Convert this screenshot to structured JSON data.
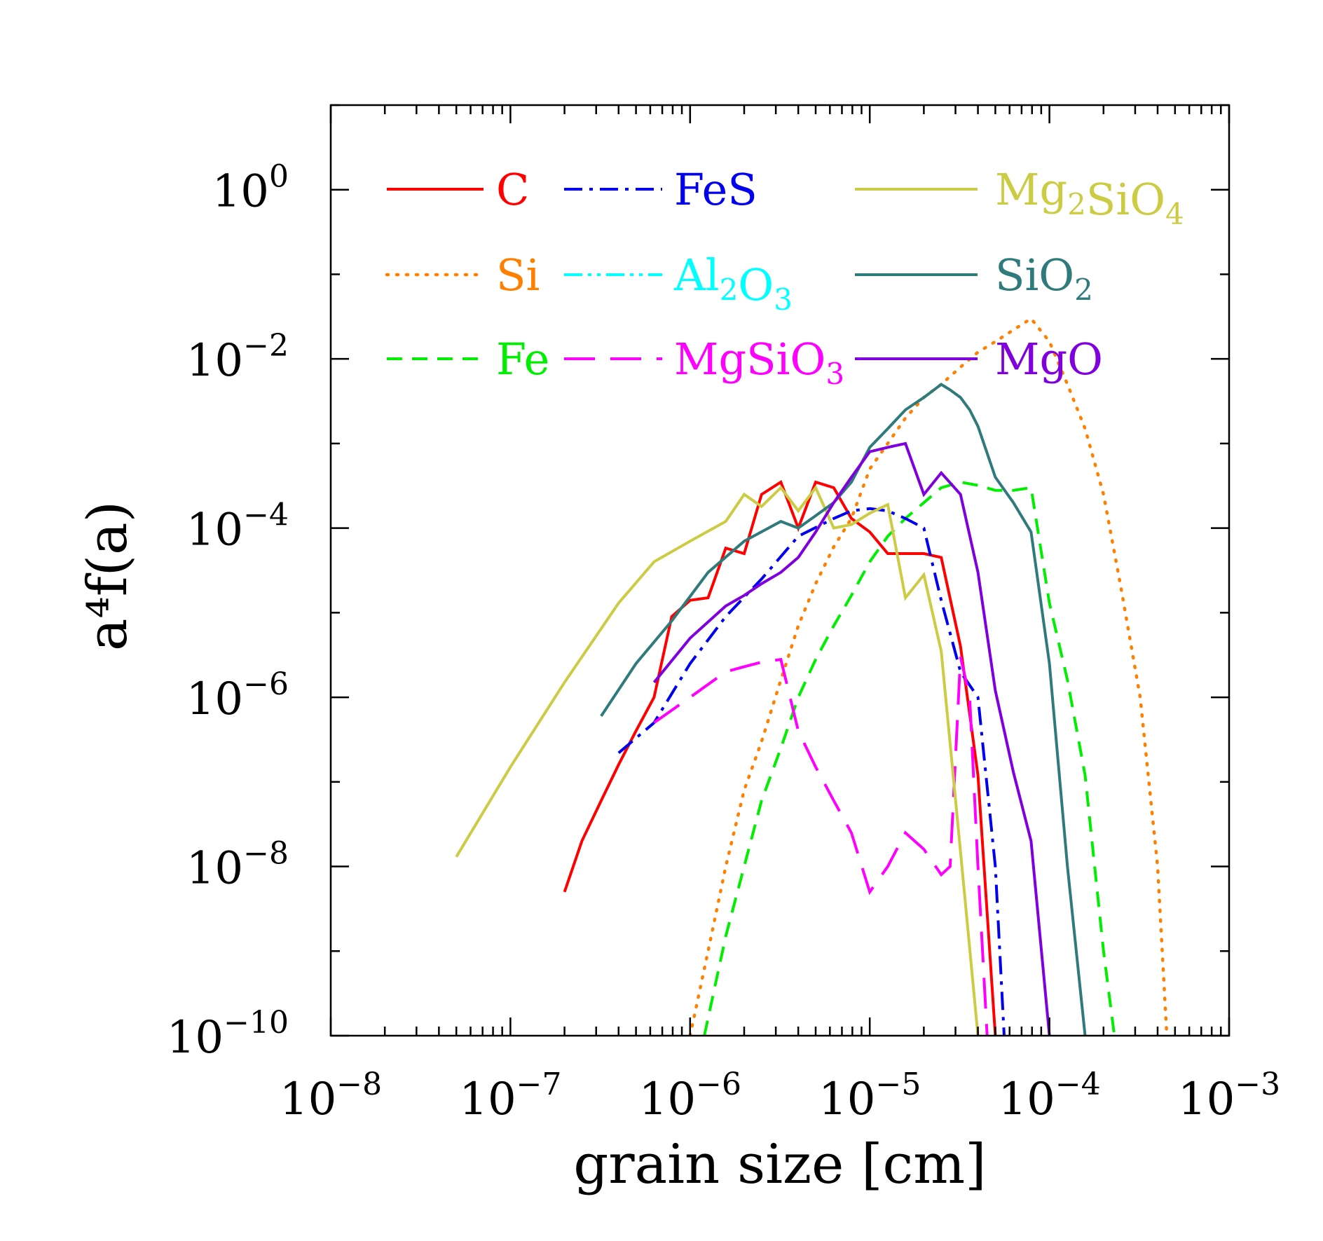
{
  "chart_data": {
    "type": "line",
    "xlabel": "grain size [cm]",
    "ylabel": "a⁴f(a)",
    "xscale": "log",
    "yscale": "log",
    "xlim": [
      1e-08,
      0.001
    ],
    "ylim": [
      1e-10,
      10
    ],
    "x_ticks": [
      {
        "base": "10",
        "exp": "−8"
      },
      {
        "base": "10",
        "exp": "−7"
      },
      {
        "base": "10",
        "exp": "−6"
      },
      {
        "base": "10",
        "exp": "−5"
      },
      {
        "base": "10",
        "exp": "−4"
      },
      {
        "base": "10",
        "exp": "−3"
      }
    ],
    "y_ticks": [
      {
        "base": "10",
        "exp": "0"
      },
      {
        "base": "10",
        "exp": "−2"
      },
      {
        "base": "10",
        "exp": "−4"
      },
      {
        "base": "10",
        "exp": "−6"
      },
      {
        "base": "10",
        "exp": "−8"
      },
      {
        "base": "10",
        "exp": "−10"
      }
    ],
    "grid": false,
    "legend_placement": "top, inside plot, three columns",
    "series": [
      {
        "name": "C",
        "color": "#ff0000",
        "dash": "solid",
        "x": [
          2e-07,
          2.5e-07,
          3.2e-07,
          4e-07,
          5e-07,
          6.3e-07,
          7.9e-07,
          1e-06,
          1.26e-06,
          1.58e-06,
          2e-06,
          2.5e-06,
          3.2e-06,
          4e-06,
          5e-06,
          6.3e-06,
          7.9e-06,
          1e-05,
          1.26e-05,
          1.58e-05,
          2e-05,
          2.5e-05,
          3.2e-05,
          4e-05,
          5e-05
        ],
        "y": [
          5e-09,
          2e-08,
          6e-08,
          1.6e-07,
          4e-07,
          1e-06,
          9e-06,
          1.4e-05,
          1.5e-05,
          5.8e-05,
          5e-05,
          0.00025,
          0.00035,
          0.0001,
          0.00035,
          0.0003,
          0.00013,
          9e-05,
          5e-05,
          5e-05,
          5e-05,
          4.5e-05,
          4e-06,
          1.2e-07,
          1e-10
        ]
      },
      {
        "name": "Si",
        "color": "#ff8000",
        "dash": "dotted",
        "x": [
          1e-06,
          1.26e-06,
          1.58e-06,
          2e-06,
          2.5e-06,
          3.2e-06,
          4e-06,
          5e-06,
          6.3e-06,
          7.9e-06,
          1e-05,
          1.26e-05,
          1.58e-05,
          2e-05,
          2.5e-05,
          3.2e-05,
          4e-05,
          5e-05,
          6.3e-05,
          7.9e-05,
          0.0001,
          0.000126,
          0.000158,
          0.0002,
          0.00025,
          0.00032,
          0.0004,
          0.00045
        ],
        "y": [
          1e-10,
          1e-09,
          1e-08,
          8e-08,
          3e-07,
          1.6e-06,
          7e-06,
          2.2e-05,
          6e-05,
          0.00013,
          0.0005,
          0.001,
          0.002,
          0.0035,
          0.005,
          0.008,
          0.012,
          0.016,
          0.022,
          0.03,
          0.016,
          0.005,
          0.0015,
          0.00025,
          2e-05,
          1e-06,
          1e-08,
          1e-10
        ]
      },
      {
        "name": "Fe",
        "color": "#00ee00",
        "dash": "dashed",
        "x": [
          1.2e-06,
          1.58e-06,
          2e-06,
          2.5e-06,
          3.2e-06,
          4e-06,
          5e-06,
          6.3e-06,
          7.9e-06,
          1e-05,
          1.26e-05,
          1.58e-05,
          2e-05,
          2.5e-05,
          3.2e-05,
          4e-05,
          5e-05,
          6.3e-05,
          7.9e-05,
          0.0001,
          0.000126,
          0.000158,
          0.0002,
          0.00023
        ],
        "y": [
          1e-10,
          1.5e-09,
          1e-08,
          6e-08,
          2.5e-07,
          1e-06,
          2.8e-06,
          7e-06,
          1.6e-05,
          4e-05,
          8e-05,
          0.00013,
          0.0002,
          0.0003,
          0.00035,
          0.00032,
          0.00028,
          0.00028,
          0.0003,
          1.3e-05,
          1.6e-06,
          1.2e-07,
          1e-09,
          1e-10
        ]
      },
      {
        "name": "FeS",
        "color": "#0000ee",
        "dash": "dashdot",
        "x": [
          4e-07,
          6.3e-07,
          1e-06,
          1.58e-06,
          2.5e-06,
          4e-06,
          6.3e-06,
          7.9e-06,
          1e-05,
          1.26e-05,
          1.58e-05,
          2e-05,
          2.5e-05,
          3.2e-05,
          4e-05,
          5e-05,
          5.6e-05
        ],
        "y": [
          2.2e-07,
          5e-07,
          2.5e-06,
          9e-06,
          2.5e-05,
          8e-05,
          0.00013,
          0.00016,
          0.00017,
          0.00016,
          0.00013,
          0.0001,
          1.4e-05,
          2e-06,
          1e-06,
          1e-08,
          1e-10
        ]
      },
      {
        "name": "Al₂O₃",
        "color": "#00ffff",
        "dash": "dashdotdot",
        "x": [],
        "y": []
      },
      {
        "name": "MgSiO₃",
        "color": "#ff00ff",
        "dash": "longdash",
        "x": [
          6.3e-07,
          1e-06,
          1.58e-06,
          2e-06,
          2.5e-06,
          3.2e-06,
          4e-06,
          5e-06,
          6.3e-06,
          7.9e-06,
          1e-05,
          1.26e-05,
          1.58e-05,
          2e-05,
          2.5e-05,
          2.8e-05,
          3.2e-05,
          3.6e-05,
          4e-05,
          4.5e-05
        ],
        "y": [
          5e-07,
          1e-06,
          2e-06,
          2.3e-06,
          2.6e-06,
          2.8e-06,
          4e-07,
          1.5e-07,
          6e-08,
          2.5e-08,
          5e-09,
          1e-08,
          2.5e-08,
          1.6e-08,
          8e-09,
          1e-08,
          3e-06,
          1e-06,
          1e-08,
          1e-10
        ]
      },
      {
        "name": "Mg₂SiO₄",
        "color": "#cccc44",
        "dash": "solid",
        "x": [
          5e-08,
          1e-07,
          2e-07,
          4e-07,
          6.3e-07,
          1e-06,
          1.58e-06,
          2e-06,
          2.5e-06,
          3.2e-06,
          4e-06,
          5e-06,
          6.3e-06,
          7.9e-06,
          1e-05,
          1.26e-05,
          1.58e-05,
          2e-05,
          2.5e-05,
          3.2e-05,
          4e-05
        ],
        "y": [
          1.3e-08,
          1.5e-07,
          1.5e-06,
          1.3e-05,
          4e-05,
          7e-05,
          0.00012,
          0.00025,
          0.00018,
          0.0003,
          0.00016,
          0.0003,
          0.0001,
          0.00011,
          0.00015,
          0.00019,
          1.5e-05,
          2.8e-05,
          3.5e-06,
          1.5e-08,
          1e-10
        ]
      },
      {
        "name": "SiO₂",
        "color": "#2f7a7a",
        "dash": "solid",
        "x": [
          3.2e-07,
          5e-07,
          7.9e-07,
          1.26e-06,
          2e-06,
          3.2e-06,
          4e-06,
          5e-06,
          6.3e-06,
          7.9e-06,
          1e-05,
          1.26e-05,
          1.58e-05,
          2e-05,
          2.5e-05,
          2.8e-05,
          3.2e-05,
          3.6e-05,
          4e-05,
          5e-05,
          6.3e-05,
          7.9e-05,
          0.0001,
          0.000126,
          0.000158
        ],
        "y": [
          6e-07,
          2.5e-06,
          8e-06,
          3e-05,
          7e-05,
          0.00012,
          0.0001,
          0.00014,
          0.0002,
          0.00035,
          0.0009,
          0.0015,
          0.0025,
          0.0035,
          0.005,
          0.0043,
          0.0035,
          0.0025,
          0.0016,
          0.0004,
          0.0002,
          9e-05,
          2.5e-06,
          1e-08,
          1e-10
        ]
      },
      {
        "name": "MgO",
        "color": "#8000dd",
        "dash": "solid",
        "x": [
          6.3e-07,
          1e-06,
          1.58e-06,
          2e-06,
          2.5e-06,
          3.2e-06,
          4e-06,
          5e-06,
          6.3e-06,
          7.9e-06,
          1e-05,
          1.26e-05,
          1.58e-05,
          2e-05,
          2.5e-05,
          3.2e-05,
          4e-05,
          5e-05,
          6.3e-05,
          7.9e-05,
          0.0001
        ],
        "y": [
          1.5e-06,
          5e-06,
          1.2e-05,
          1.6e-05,
          2.2e-05,
          3e-05,
          4.5e-05,
          9e-05,
          0.0002,
          0.0004,
          0.0008,
          0.0009,
          0.001,
          0.00025,
          0.00045,
          0.00025,
          3e-05,
          1.2e-06,
          1.3e-07,
          2e-08,
          1e-10
        ]
      }
    ]
  }
}
